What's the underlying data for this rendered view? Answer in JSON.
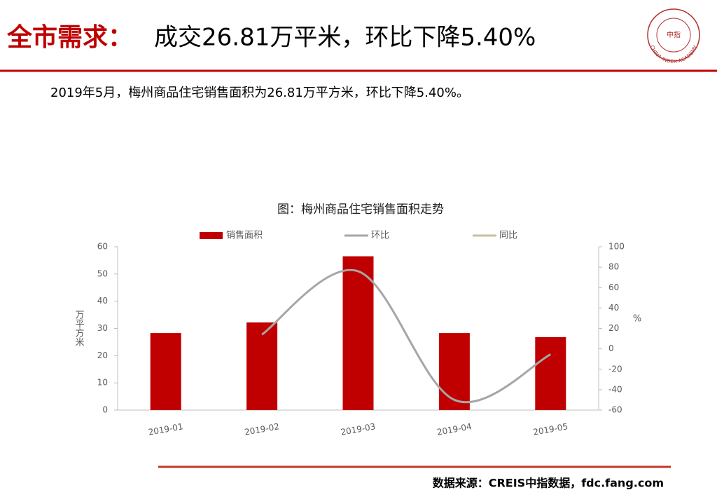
{
  "header": {
    "title_lead": "全市需求：",
    "title_rest": "成交26.81万平米，环比下降5.40%"
  },
  "logo": {
    "ring": "CHINA INDEX ACADEMY",
    "center": "中指"
  },
  "summary": "2019年5月，梅州商品住宅销售面积为26.81万平方米，环比下降5.40%。",
  "chart_data": {
    "type": "bar-line",
    "title": "图：梅州商品住宅销售面积走势",
    "categories": [
      "2019-01",
      "2019-02",
      "2019-03",
      "2019-04",
      "2019-05"
    ],
    "series": [
      {
        "name": "销售面积",
        "color": "#c00000",
        "values": [
          28.3,
          32.2,
          56.5,
          28.3,
          26.81
        ]
      },
      {
        "name": "环比",
        "color": "#a6a6a6",
        "axis": "y2",
        "values": [
          null,
          14,
          76,
          -50,
          -5.4
        ]
      },
      {
        "name": "同比",
        "color": "#c4c29a",
        "axis": "y2",
        "values": [
          null,
          null,
          null,
          null,
          null
        ]
      }
    ],
    "ylabel": "万平方米",
    "y2label": "%",
    "ylim": [
      0,
      60
    ],
    "yticks": [
      0,
      10,
      20,
      30,
      40,
      50,
      60
    ],
    "y2lim": [
      -60,
      100
    ],
    "y2ticks": [
      -60,
      -40,
      -20,
      0,
      20,
      40,
      60,
      80,
      100
    ],
    "legend": "top"
  },
  "footer": {
    "source": "数据来源：CREIS中指数据，fdc.fang.com"
  }
}
